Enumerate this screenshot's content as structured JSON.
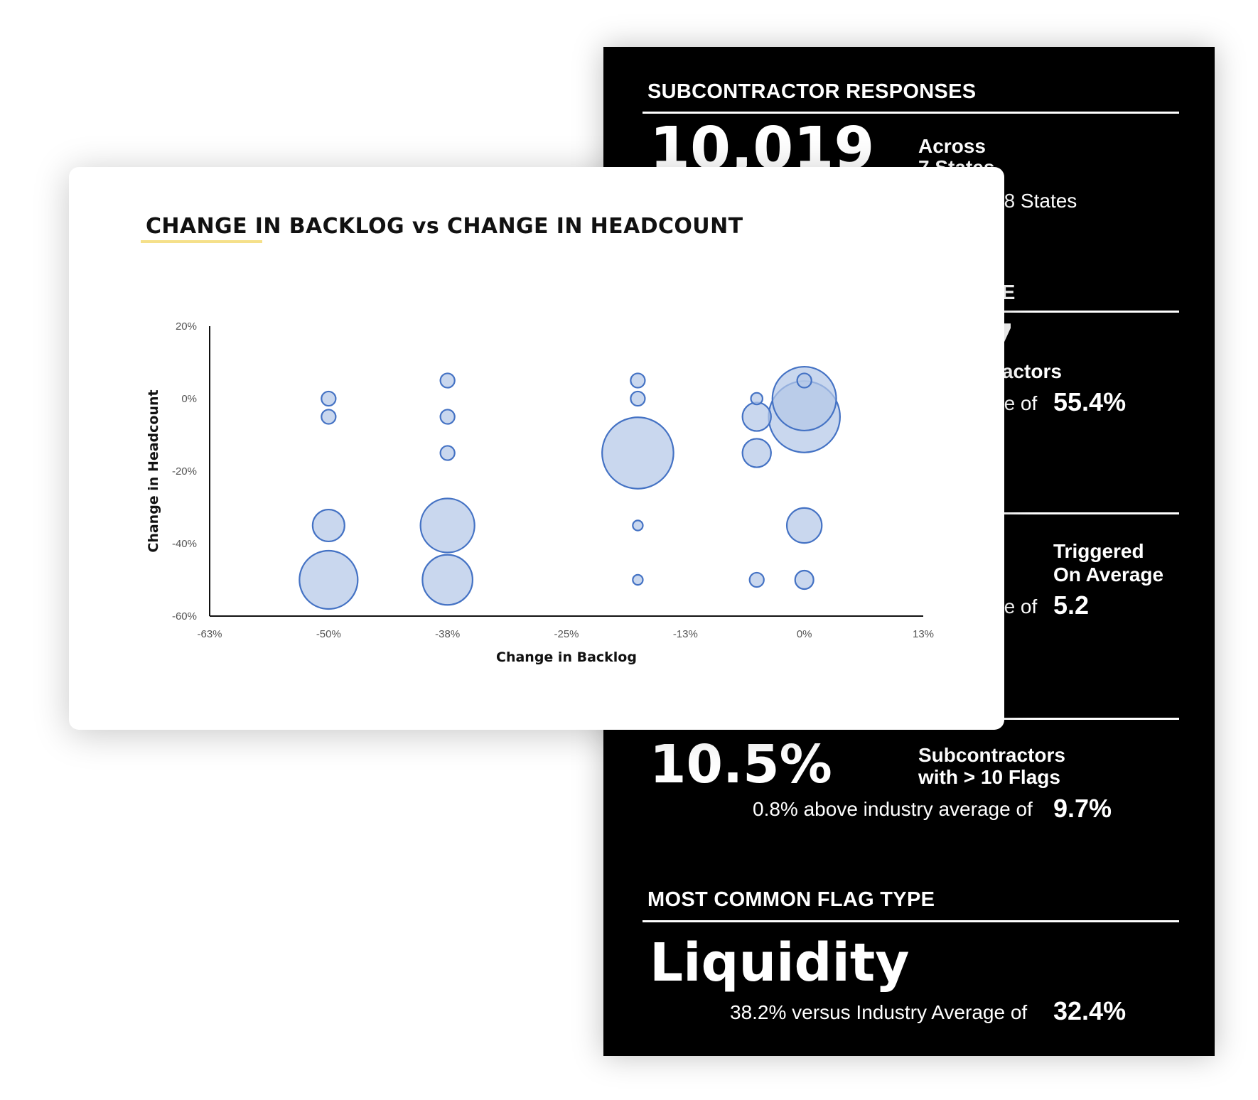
{
  "panel": {
    "section1": {
      "title": "SUBCONTRACTOR RESPONSES",
      "big_value": "10,019",
      "label_line1": "Across",
      "label_line2": "7 States",
      "sub_text": "48 States"
    },
    "section2": {
      "title_fragment": "E",
      "big_fragment": "7",
      "label_fragment": "ractors",
      "sub_fragment": "ge of",
      "sub_value": "55.4%"
    },
    "section3": {
      "label_line1": "Triggered",
      "label_line2": "On Average",
      "sub_fragment": "ge of",
      "sub_value": "5.2"
    },
    "section4": {
      "big_value": "10.5%",
      "label_line1": "Subcontractors",
      "label_line2": "with > 10 Flags",
      "sub_text": "0.8% above industry average of",
      "sub_value": "9.7%"
    },
    "section5": {
      "title": "MOST COMMON FLAG TYPE",
      "big_value": "Liquidity",
      "sub_text": "38.2% versus Industry Average of",
      "sub_value": "32.4%"
    }
  },
  "colors": {
    "panel_bg": "#000000",
    "bubble_fill": "#b4c7e7",
    "bubble_stroke": "#4472c4",
    "title_underline": "#f5e08a"
  },
  "chart_data": {
    "type": "scatter",
    "subtype": "bubble",
    "title": "CHANGE IN BACKLOG vs CHANGE IN HEADCOUNT",
    "xlabel": "Change in Backlog",
    "ylabel": "Change in Headcount",
    "xlim": [
      -0.625,
      0.125
    ],
    "ylim": [
      -0.6,
      0.2
    ],
    "x_ticks": [
      "-63%",
      "-50%",
      "-38%",
      "-25%",
      "-13%",
      "0%",
      "13%"
    ],
    "y_ticks": [
      "20%",
      "0%",
      "-20%",
      "-40%",
      "-60%"
    ],
    "grid": false,
    "legend": false,
    "points": [
      {
        "x": -0.5,
        "y": 0.0,
        "size": 0.06
      },
      {
        "x": -0.5,
        "y": -0.05,
        "size": 0.06
      },
      {
        "x": -0.5,
        "y": -0.35,
        "size": 0.3
      },
      {
        "x": -0.5,
        "y": -0.5,
        "size": 1.0
      },
      {
        "x": -0.375,
        "y": 0.05,
        "size": 0.06
      },
      {
        "x": -0.375,
        "y": -0.05,
        "size": 0.06
      },
      {
        "x": -0.375,
        "y": -0.15,
        "size": 0.06
      },
      {
        "x": -0.375,
        "y": -0.35,
        "size": 0.86
      },
      {
        "x": -0.375,
        "y": -0.5,
        "size": 0.74
      },
      {
        "x": -0.175,
        "y": 0.05,
        "size": 0.06
      },
      {
        "x": -0.175,
        "y": 0.0,
        "size": 0.06
      },
      {
        "x": -0.175,
        "y": -0.15,
        "size": 1.5
      },
      {
        "x": -0.175,
        "y": -0.35,
        "size": 0.03
      },
      {
        "x": -0.175,
        "y": -0.5,
        "size": 0.03
      },
      {
        "x": -0.05,
        "y": 0.0,
        "size": 0.04
      },
      {
        "x": -0.05,
        "y": -0.05,
        "size": 0.24
      },
      {
        "x": -0.05,
        "y": -0.15,
        "size": 0.24
      },
      {
        "x": -0.05,
        "y": -0.5,
        "size": 0.06
      },
      {
        "x": 0.0,
        "y": 0.05,
        "size": 0.06
      },
      {
        "x": 0.0,
        "y": 0.0,
        "size": 1.2
      },
      {
        "x": 0.0,
        "y": -0.05,
        "size": 1.5
      },
      {
        "x": 0.0,
        "y": -0.35,
        "size": 0.36
      },
      {
        "x": 0.0,
        "y": -0.5,
        "size": 0.1
      }
    ]
  }
}
